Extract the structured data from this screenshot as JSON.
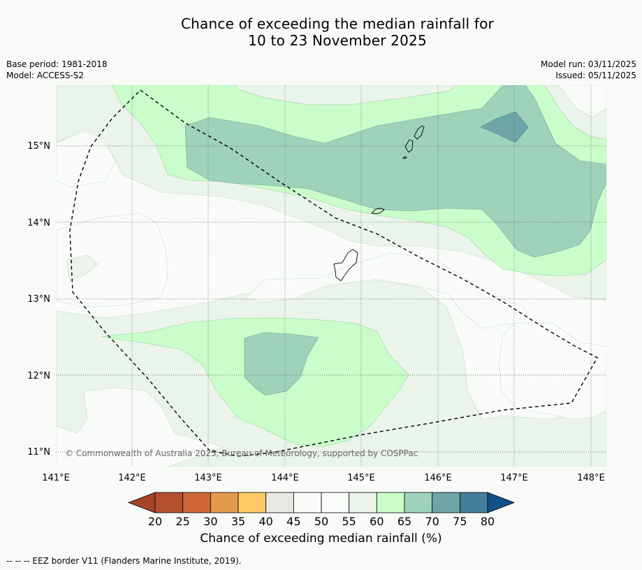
{
  "title_line1": "Chance of exceeding the median rainfall for",
  "title_line2": "10 to 23 November 2025",
  "meta_left": {
    "base_period": "Base period: 1981-2018",
    "model": "Model: ACCESS-S2"
  },
  "meta_right": {
    "model_run": "Model run: 03/11/2025",
    "issued": "Issued: 05/11/2025"
  },
  "copyright": "© Commonwealth of Australia 2025, Bureau of Meteorology, supported by COSPPac",
  "map": {
    "lat_ticks": [
      "15°N",
      "14°N",
      "13°N",
      "12°N",
      "11°N"
    ],
    "lon_ticks": [
      "141°E",
      "142°E",
      "143°E",
      "144°E",
      "145°E",
      "146°E",
      "147°E",
      "148°E"
    ]
  },
  "colorbar": {
    "label": "Chance of exceeding median rainfall (%)",
    "ticks": [
      "20",
      "25",
      "30",
      "35",
      "40",
      "45",
      "50",
      "55",
      "60",
      "65",
      "70",
      "75",
      "80"
    ],
    "colors": [
      "#b5502d",
      "#cf6633",
      "#e29a4c",
      "#fecb67",
      "#e8e9e5",
      "#f9fbf9",
      "#fafcfa",
      "#eaf4ea",
      "#cbfdcb",
      "#9ed2bb",
      "#6da5a9",
      "#437f9a"
    ],
    "under_color": "#a64228",
    "over_color": "#134f89"
  },
  "footnote": "-- -- -- EEZ border V11 (Flanders Marine Institute, 2019)."
}
